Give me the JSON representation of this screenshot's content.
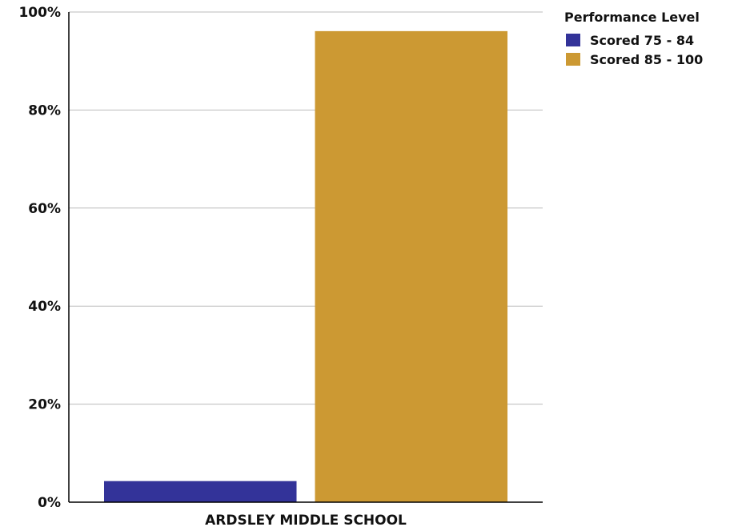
{
  "chart_data": {
    "type": "bar",
    "categories": [
      "ARDSLEY MIDDLE SCHOOL"
    ],
    "series": [
      {
        "name": "Scored 75 - 84",
        "values": [
          4.3
        ],
        "color": "#333399"
      },
      {
        "name": "Scored 85 - 100",
        "values": [
          96.1
        ],
        "color": "#CC9933"
      }
    ],
    "ylim": [
      0,
      100
    ],
    "yticks": [
      "0%",
      "20%",
      "40%",
      "60%",
      "80%",
      "100%"
    ],
    "ytick_values": [
      0,
      20,
      40,
      60,
      80,
      100
    ],
    "legend": {
      "title": "Performance Level",
      "position": "top-right"
    },
    "grid": true,
    "colors": {
      "grid": "#bbbbbb",
      "axis": "#000000"
    }
  }
}
